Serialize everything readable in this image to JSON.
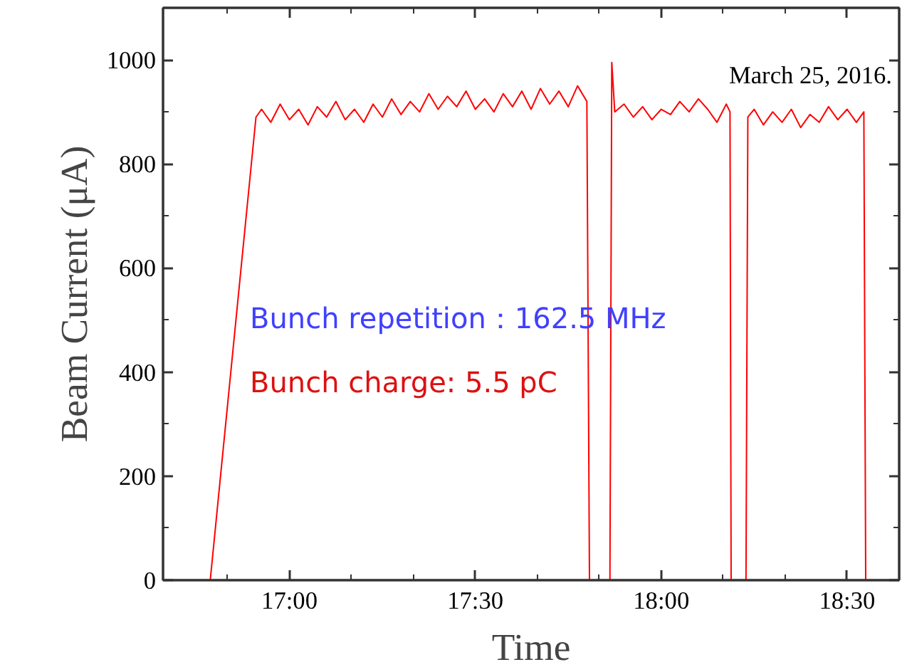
{
  "chart_data": {
    "type": "line",
    "xlabel": "Time",
    "ylabel": "Beam Current (μA)",
    "annotations": [
      "March 25, 2016.",
      "Bunch repetition：162.5 MHz",
      "Bunch charge:  5.5 pC"
    ],
    "xlim": [
      16.66,
      18.64
    ],
    "ylim": [
      0,
      1100
    ],
    "xticks": [
      {
        "value": 16.8333,
        "label": null
      },
      {
        "value": 17,
        "label": "17:00"
      },
      {
        "value": 17.1667,
        "label": null
      },
      {
        "value": 17.3333,
        "label": null
      },
      {
        "value": 17.5,
        "label": "17:30"
      },
      {
        "value": 17.6667,
        "label": null
      },
      {
        "value": 17.8333,
        "label": null
      },
      {
        "value": 18,
        "label": "18:00"
      },
      {
        "value": 18.1667,
        "label": null
      },
      {
        "value": 18.3333,
        "label": null
      },
      {
        "value": 18.5,
        "label": "18:30"
      }
    ],
    "yticks": [
      0,
      {
        "value": 100,
        "label": null
      },
      200,
      {
        "value": 300,
        "label": null
      },
      400,
      {
        "value": 500,
        "label": null
      },
      600,
      {
        "value": 700,
        "label": null
      },
      800,
      {
        "value": 900,
        "label": null
      },
      1000
    ],
    "grid": false,
    "marker": "none",
    "line_style": "solid",
    "series": [
      {
        "color": "#ff0000",
        "x": [
          16.787,
          16.91,
          16.925,
          16.95,
          16.975,
          17.0,
          17.025,
          17.05,
          17.075,
          17.1,
          17.125,
          17.15,
          17.175,
          17.2,
          17.225,
          17.25,
          17.275,
          17.3,
          17.325,
          17.35,
          17.375,
          17.4,
          17.425,
          17.45,
          17.475,
          17.5,
          17.525,
          17.55,
          17.575,
          17.6,
          17.625,
          17.65,
          17.675,
          17.7,
          17.725,
          17.75,
          17.775,
          17.8,
          17.807,
          17.862,
          17.867,
          17.875,
          17.9,
          17.925,
          17.95,
          17.975,
          18.0,
          18.025,
          18.05,
          18.075,
          18.1,
          18.125,
          18.15,
          18.175,
          18.185,
          18.188,
          18.228,
          18.233,
          18.25,
          18.275,
          18.3,
          18.325,
          18.35,
          18.375,
          18.4,
          18.425,
          18.45,
          18.475,
          18.5,
          18.525,
          18.545,
          18.55
        ],
        "values": [
          0,
          890,
          905,
          880,
          915,
          885,
          905,
          875,
          910,
          890,
          920,
          885,
          905,
          880,
          915,
          890,
          925,
          895,
          920,
          900,
          935,
          905,
          930,
          910,
          940,
          905,
          925,
          900,
          935,
          910,
          940,
          905,
          945,
          915,
          940,
          910,
          950,
          920,
          0,
          0,
          995,
          900,
          915,
          890,
          910,
          885,
          905,
          895,
          920,
          900,
          925,
          905,
          880,
          915,
          900,
          0,
          0,
          890,
          905,
          875,
          900,
          880,
          905,
          870,
          895,
          880,
          910,
          885,
          905,
          880,
          900,
          0
        ]
      }
    ]
  }
}
